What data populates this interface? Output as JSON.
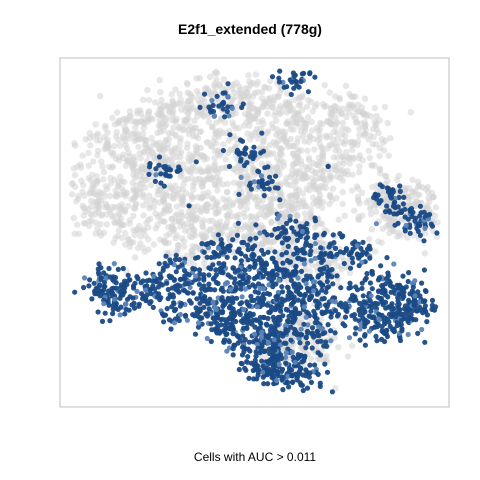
{
  "chart_data": {
    "type": "scatter",
    "title": "E2f1_extended (778g)",
    "xlabel": "Cells with AUC > 0.011",
    "ylabel": "",
    "grid": false,
    "legend": "none",
    "colors": {
      "background_cells": "#d3d3d3",
      "active_cells": "#1a4a85",
      "active_cells_light": "#5b84b8",
      "frame": "#bfbfbf"
    },
    "series": [
      {
        "role": "cells-below-threshold",
        "points": [
          [
            0.38,
            0.08
          ],
          [
            0.47,
            0.09
          ],
          [
            0.59,
            0.11
          ],
          [
            0.31,
            0.13
          ],
          [
            0.72,
            0.13
          ],
          [
            0.24,
            0.16
          ],
          [
            0.52,
            0.16
          ],
          [
            0.8,
            0.18
          ],
          [
            0.17,
            0.2
          ],
          [
            0.4,
            0.21
          ],
          [
            0.65,
            0.21
          ],
          [
            0.1,
            0.24
          ],
          [
            0.28,
            0.25
          ],
          [
            0.55,
            0.26
          ],
          [
            0.74,
            0.27
          ],
          [
            0.2,
            0.3
          ],
          [
            0.46,
            0.31
          ],
          [
            0.62,
            0.32
          ],
          [
            0.34,
            0.34
          ],
          [
            0.68,
            0.36
          ],
          [
            0.05,
            0.38
          ],
          [
            0.15,
            0.38
          ],
          [
            0.25,
            0.4
          ],
          [
            0.5,
            0.4
          ],
          [
            0.57,
            0.42
          ],
          [
            0.84,
            0.39
          ],
          [
            0.92,
            0.4
          ],
          [
            0.4,
            0.44
          ],
          [
            0.64,
            0.46
          ],
          [
            0.08,
            0.45
          ],
          [
            0.3,
            0.47
          ],
          [
            0.88,
            0.46
          ],
          [
            0.96,
            0.45
          ],
          [
            0.45,
            0.5
          ],
          [
            0.56,
            0.52
          ],
          [
            0.2,
            0.51
          ],
          [
            0.35,
            0.55
          ],
          [
            0.6,
            0.58
          ],
          [
            0.7,
            0.6
          ],
          [
            0.58,
            0.85
          ],
          [
            0.62,
            0.8
          ],
          [
            0.66,
            0.86
          ]
        ]
      },
      {
        "role": "cells-above-threshold",
        "points": [
          [
            0.61,
            0.04
          ],
          [
            0.41,
            0.11
          ],
          [
            0.47,
            0.26
          ],
          [
            0.26,
            0.31
          ],
          [
            0.52,
            0.36
          ],
          [
            0.87,
            0.39
          ],
          [
            0.9,
            0.44
          ],
          [
            0.95,
            0.48
          ],
          [
            0.58,
            0.5
          ],
          [
            0.64,
            0.52
          ],
          [
            0.48,
            0.54
          ],
          [
            0.4,
            0.55
          ],
          [
            0.72,
            0.55
          ],
          [
            0.78,
            0.57
          ],
          [
            0.62,
            0.58
          ],
          [
            0.3,
            0.6
          ],
          [
            0.52,
            0.6
          ],
          [
            0.44,
            0.61
          ],
          [
            0.7,
            0.62
          ],
          [
            0.56,
            0.63
          ],
          [
            0.08,
            0.64
          ],
          [
            0.36,
            0.64
          ],
          [
            0.22,
            0.65
          ],
          [
            0.15,
            0.66
          ],
          [
            0.46,
            0.66
          ],
          [
            0.62,
            0.66
          ],
          [
            0.84,
            0.64
          ],
          [
            0.1,
            0.68
          ],
          [
            0.29,
            0.68
          ],
          [
            0.54,
            0.69
          ],
          [
            0.67,
            0.69
          ],
          [
            0.77,
            0.7
          ],
          [
            0.2,
            0.7
          ],
          [
            0.41,
            0.7
          ],
          [
            0.89,
            0.7
          ],
          [
            0.93,
            0.68
          ],
          [
            0.12,
            0.72
          ],
          [
            0.48,
            0.72
          ],
          [
            0.6,
            0.72
          ],
          [
            0.36,
            0.73
          ],
          [
            0.28,
            0.74
          ],
          [
            0.72,
            0.74
          ],
          [
            0.82,
            0.73
          ],
          [
            0.88,
            0.75
          ],
          [
            0.95,
            0.73
          ],
          [
            0.44,
            0.76
          ],
          [
            0.55,
            0.76
          ],
          [
            0.64,
            0.76
          ],
          [
            0.38,
            0.78
          ],
          [
            0.5,
            0.79
          ],
          [
            0.59,
            0.8
          ],
          [
            0.8,
            0.78
          ],
          [
            0.86,
            0.8
          ],
          [
            0.9,
            0.77
          ],
          [
            0.44,
            0.81
          ],
          [
            0.66,
            0.82
          ],
          [
            0.52,
            0.83
          ],
          [
            0.56,
            0.86
          ],
          [
            0.48,
            0.88
          ],
          [
            0.61,
            0.9
          ],
          [
            0.55,
            0.91
          ],
          [
            0.59,
            0.94
          ],
          [
            0.51,
            0.92
          ],
          [
            0.65,
            0.93
          ]
        ]
      }
    ]
  }
}
